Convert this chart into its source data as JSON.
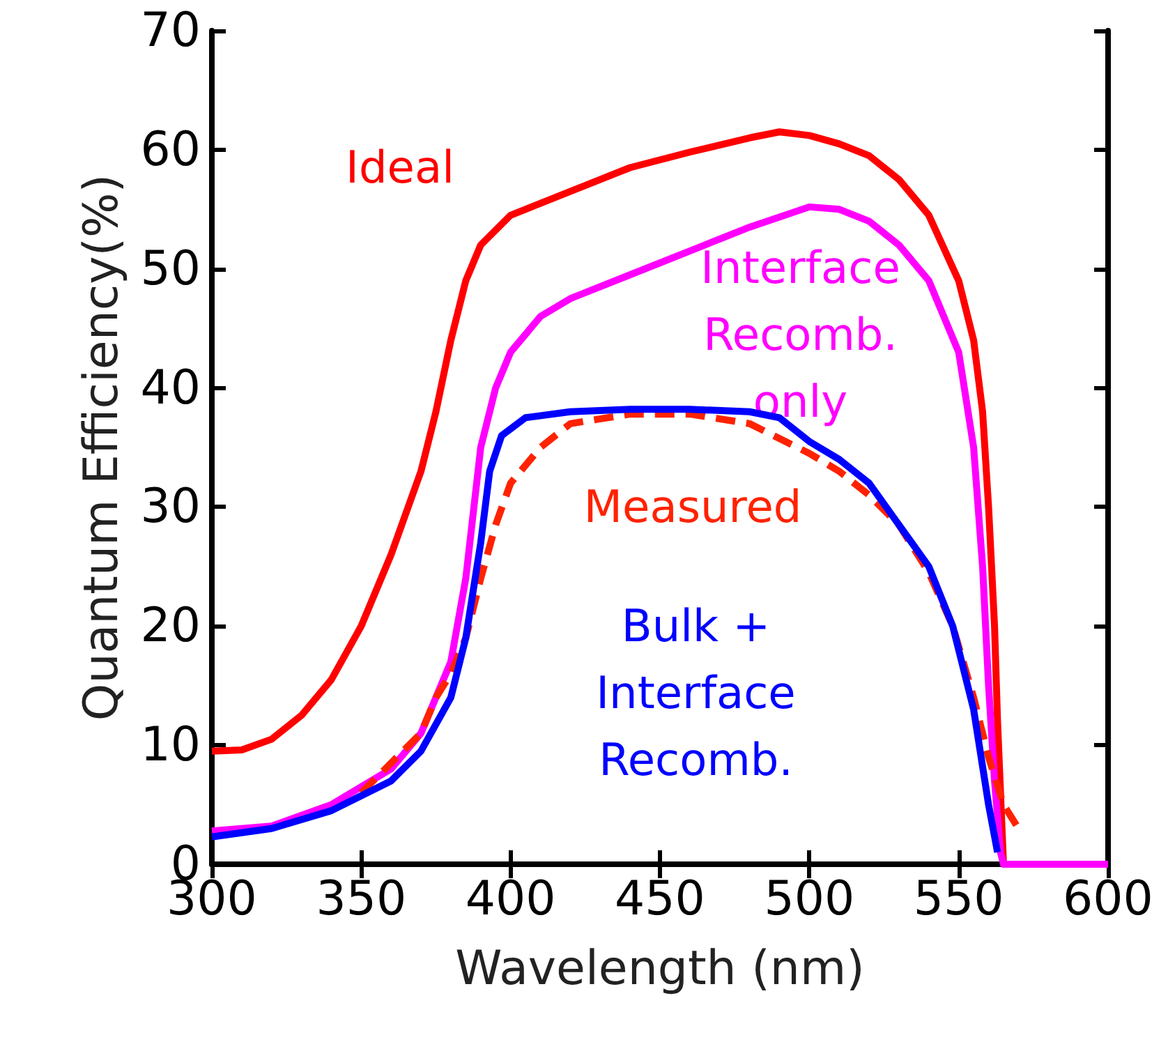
{
  "chart_data": {
    "type": "line",
    "xlabel": "Wavelength (nm)",
    "ylabel": "Quantum Efficiency(%)",
    "xlim": [
      300,
      600
    ],
    "xticks": [
      300,
      350,
      400,
      450,
      500,
      550,
      600
    ],
    "ylim": [
      0,
      70
    ],
    "yticks": [
      0,
      10,
      20,
      30,
      40,
      50,
      60,
      70
    ],
    "grid": false,
    "legend": false,
    "marker": "none",
    "line_style": "solid",
    "series": [
      {
        "name": "Ideal",
        "color": "#ff0000",
        "x": [
          300,
          310,
          320,
          330,
          340,
          350,
          360,
          370,
          375,
          380,
          385,
          390,
          400,
          420,
          440,
          460,
          480,
          490,
          500,
          510,
          520,
          530,
          540,
          550,
          555,
          558,
          560,
          562,
          563,
          565,
          600
        ],
        "values": [
          9.5,
          9.6,
          10.5,
          12.5,
          15.5,
          20,
          26,
          33,
          38,
          44,
          49,
          52,
          54.5,
          56.5,
          58.5,
          59.8,
          61,
          61.5,
          61.2,
          60.5,
          59.5,
          57.5,
          54.5,
          49,
          44,
          38,
          30,
          20,
          12,
          0,
          0
        ]
      },
      {
        "name": "Interface\nRecomb.\nonly",
        "color": "#ff00ff",
        "x": [
          300,
          320,
          340,
          360,
          370,
          380,
          385,
          390,
          395,
          400,
          410,
          420,
          440,
          460,
          480,
          500,
          510,
          520,
          530,
          540,
          550,
          555,
          558,
          560,
          562,
          564,
          565,
          600
        ],
        "values": [
          2.8,
          3.2,
          5,
          8,
          11,
          17,
          24,
          35,
          40,
          43,
          46,
          47.5,
          49.5,
          51.5,
          53.5,
          55.2,
          55,
          54,
          52,
          49,
          43,
          35,
          25,
          15,
          7,
          1,
          0,
          0
        ]
      },
      {
        "name": "Measured",
        "color": "#ff2200",
        "line_style": "dashed",
        "x": [
          350,
          360,
          370,
          375,
          380,
          385,
          390,
          395,
          400,
          410,
          420,
          440,
          460,
          480,
          500,
          510,
          520,
          530,
          540,
          548,
          555,
          560,
          565,
          570
        ],
        "values": [
          6,
          8.5,
          11,
          14,
          16,
          19,
          24,
          28.5,
          32,
          35,
          37,
          37.8,
          37.8,
          37,
          34.5,
          33,
          31,
          28.5,
          24.5,
          20,
          14,
          9,
          5,
          3
        ]
      },
      {
        "name": "Bulk +\nInterface\nRecomb.",
        "color": "#0000ff",
        "x": [
          300,
          320,
          340,
          360,
          370,
          380,
          385,
          390,
          393,
          397,
          405,
          420,
          440,
          460,
          480,
          490,
          500,
          510,
          520,
          530,
          540,
          548,
          555,
          560,
          563
        ],
        "values": [
          2.3,
          3,
          4.5,
          7,
          9.5,
          14,
          19,
          27,
          33,
          36,
          37.5,
          38,
          38.2,
          38.2,
          38,
          37.5,
          35.5,
          34,
          32,
          28.5,
          25,
          20,
          13,
          5,
          1
        ]
      }
    ]
  }
}
